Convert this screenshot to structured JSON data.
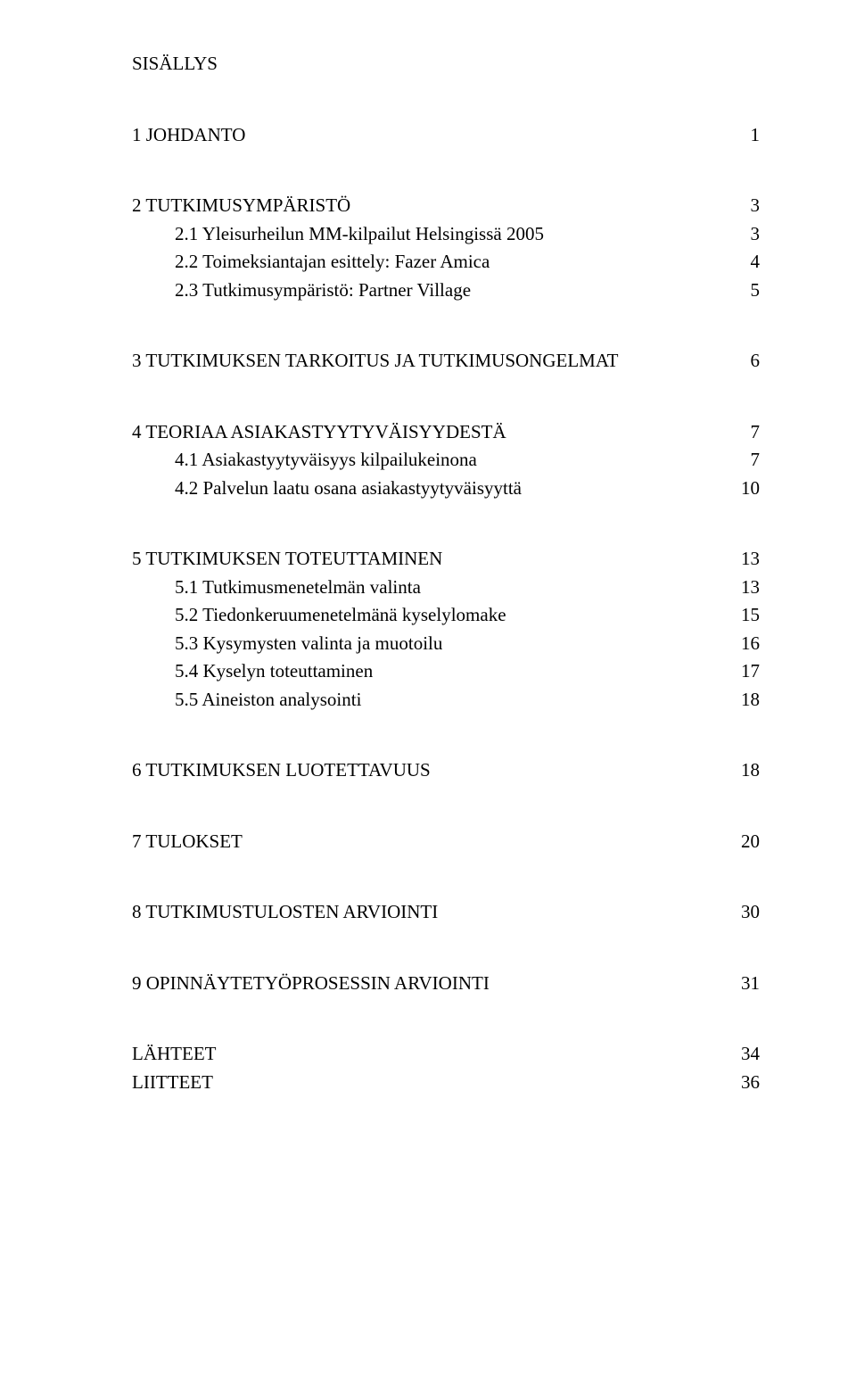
{
  "title": "SISÄLLYS",
  "sections": [
    {
      "rows": [
        {
          "label": "1 JOHDANTO",
          "page": "1",
          "indent": false
        }
      ]
    },
    {
      "rows": [
        {
          "label": "2 TUTKIMUSYMPÄRISTÖ",
          "page": "3",
          "indent": false
        },
        {
          "label": "2.1 Yleisurheilun MM-kilpailut Helsingissä 2005",
          "page": "3",
          "indent": true
        },
        {
          "label": "2.2 Toimeksiantajan esittely: Fazer Amica",
          "page": "4",
          "indent": true
        },
        {
          "label": "2.3 Tutkimusympäristö: Partner Village",
          "page": "5",
          "indent": true
        }
      ]
    },
    {
      "rows": [
        {
          "label": "3 TUTKIMUKSEN TARKOITUS JA TUTKIMUSONGELMAT",
          "page": "6",
          "indent": false
        }
      ]
    },
    {
      "rows": [
        {
          "label": "4 TEORIAA ASIAKASTYYTYVÄISYYDESTÄ",
          "page": "7",
          "indent": false
        },
        {
          "label": "4.1 Asiakastyytyväisyys kilpailukeinona",
          "page": "7",
          "indent": true
        },
        {
          "label": "4.2 Palvelun laatu osana asiakastyytyväisyyttä",
          "page": "10",
          "indent": true
        }
      ]
    },
    {
      "rows": [
        {
          "label": "5 TUTKIMUKSEN TOTEUTTAMINEN",
          "page": "13",
          "indent": false
        },
        {
          "label": "5.1 Tutkimusmenetelmän valinta",
          "page": "13",
          "indent": true
        },
        {
          "label": "5.2 Tiedonkeruumenetelmänä kyselylomake",
          "page": "15",
          "indent": true
        },
        {
          "label": "5.3 Kysymysten valinta ja muotoilu",
          "page": "16",
          "indent": true
        },
        {
          "label": "5.4 Kyselyn toteuttaminen",
          "page": "17",
          "indent": true
        },
        {
          "label": "5.5 Aineiston analysointi",
          "page": "18",
          "indent": true
        }
      ]
    },
    {
      "rows": [
        {
          "label": "6 TUTKIMUKSEN LUOTETTAVUUS",
          "page": "18",
          "indent": false
        }
      ]
    },
    {
      "rows": [
        {
          "label": "7 TULOKSET",
          "page": "20",
          "indent": false
        }
      ]
    },
    {
      "rows": [
        {
          "label": "8 TUTKIMUSTULOSTEN ARVIOINTI",
          "page": "30",
          "indent": false
        }
      ]
    },
    {
      "rows": [
        {
          "label": "9 OPINNÄYTETYÖPROSESSIN ARVIOINTI",
          "page": "31",
          "indent": false
        }
      ]
    },
    {
      "rows": [
        {
          "label": "LÄHTEET",
          "page": "34",
          "indent": false
        },
        {
          "label": "LIITTEET",
          "page": "36",
          "indent": false
        }
      ]
    }
  ]
}
